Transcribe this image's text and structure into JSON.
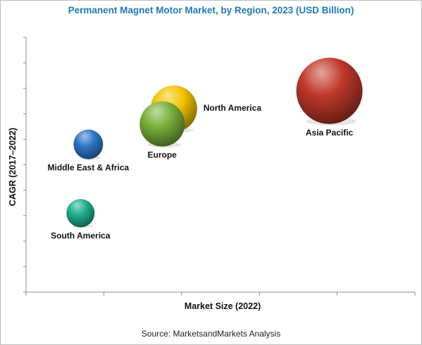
{
  "title": "Permanent Magnet Motor Market, by Region, 2023 (USD Billion)",
  "source": "Source: MarketsandMarkets Analysis",
  "chart_data": {
    "type": "bubble",
    "title": "Permanent Magnet Motor Market, by Region, 2023 (USD Billion)",
    "xlabel": "Market Size (2022)",
    "ylabel": "CAGR (2017–2022)",
    "xlim": [
      0,
      10
    ],
    "ylim": [
      0,
      10
    ],
    "x_ticks": 5,
    "y_ticks": 10,
    "grid": false,
    "series": [
      {
        "name": "Asia Pacific",
        "x": 7.8,
        "y": 7.9,
        "size": 4.7,
        "color": "#c0392b",
        "label_pos": "below"
      },
      {
        "name": "North America",
        "x": 3.8,
        "y": 7.2,
        "size": 3.3,
        "color": "#f2c500",
        "label_pos": "right"
      },
      {
        "name": "Europe",
        "x": 3.5,
        "y": 6.6,
        "size": 3.2,
        "color": "#79b03a",
        "label_pos": "below"
      },
      {
        "name": "Middle East & Africa",
        "x": 1.6,
        "y": 5.8,
        "size": 2.1,
        "color": "#2e78c8",
        "label_pos": "below"
      },
      {
        "name": "South America",
        "x": 1.4,
        "y": 3.1,
        "size": 2.0,
        "color": "#1fb08f",
        "label_pos": "below"
      }
    ]
  }
}
